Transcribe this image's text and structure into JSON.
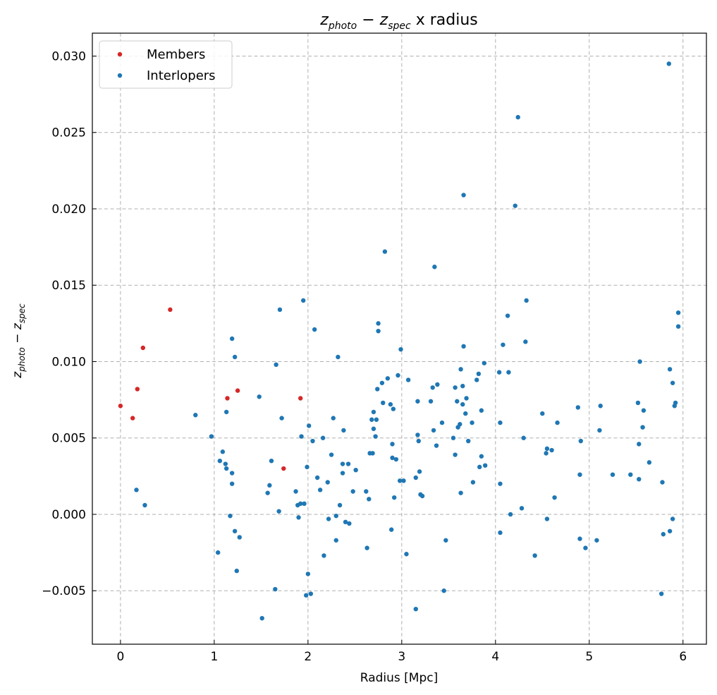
{
  "chart_data": {
    "type": "scatter",
    "title": {
      "base1": "z",
      "sub1": "photo",
      "mid": " − ",
      "base2": "z",
      "sub2": "spec",
      "tail": " x radius"
    },
    "xlabel": "Radius [Mpc]",
    "ylabel": {
      "base1": "z",
      "sub1": "photo",
      "mid": " − ",
      "base2": "z",
      "sub2": "spec"
    },
    "xlim": [
      -0.3,
      6.25
    ],
    "ylim": [
      -0.0085,
      0.0315
    ],
    "xticks": [
      0,
      1,
      2,
      3,
      4,
      5,
      6
    ],
    "xtick_labels": [
      "0",
      "1",
      "2",
      "3",
      "4",
      "5",
      "6"
    ],
    "yticks": [
      -0.005,
      0.0,
      0.005,
      0.01,
      0.015,
      0.02,
      0.025,
      0.03
    ],
    "ytick_labels": [
      "−0.005",
      "0.000",
      "0.005",
      "0.010",
      "0.015",
      "0.020",
      "0.025",
      "0.030"
    ],
    "grid": true,
    "legend_position": "top-left",
    "series": [
      {
        "name": "Members",
        "color": "#d62728",
        "points": [
          [
            0.0,
            0.0071
          ],
          [
            0.13,
            0.0063
          ],
          [
            0.18,
            0.0082
          ],
          [
            0.24,
            0.0109
          ],
          [
            0.53,
            0.0134
          ],
          [
            1.14,
            0.0076
          ],
          [
            1.25,
            0.0081
          ],
          [
            1.74,
            0.003
          ],
          [
            1.92,
            0.0076
          ]
        ]
      },
      {
        "name": "Interlopers",
        "color": "#1f77b4",
        "points": [
          [
            0.17,
            0.0016
          ],
          [
            0.26,
            0.0006
          ],
          [
            0.8,
            0.0065
          ],
          [
            0.97,
            0.0051
          ],
          [
            1.04,
            -0.0025
          ],
          [
            1.06,
            0.0035
          ],
          [
            1.09,
            0.0041
          ],
          [
            1.12,
            0.0033
          ],
          [
            1.13,
            0.003
          ],
          [
            1.13,
            0.0067
          ],
          [
            1.17,
            -0.0001
          ],
          [
            1.19,
            0.0027
          ],
          [
            1.19,
            0.002
          ],
          [
            1.19,
            0.0115
          ],
          [
            1.22,
            0.0103
          ],
          [
            1.22,
            -0.0011
          ],
          [
            1.24,
            -0.0037
          ],
          [
            1.27,
            -0.0015
          ],
          [
            1.48,
            0.0077
          ],
          [
            1.51,
            -0.0068
          ],
          [
            1.57,
            0.0014
          ],
          [
            1.59,
            0.0019
          ],
          [
            1.61,
            0.0035
          ],
          [
            1.65,
            -0.0049
          ],
          [
            1.66,
            0.0098
          ],
          [
            1.69,
            0.0002
          ],
          [
            1.7,
            0.0134
          ],
          [
            1.72,
            0.0063
          ],
          [
            1.87,
            0.0015
          ],
          [
            1.89,
            0.0006
          ],
          [
            1.9,
            -0.0002
          ],
          [
            1.92,
            0.0007
          ],
          [
            1.93,
            0.0051
          ],
          [
            1.95,
            0.014
          ],
          [
            1.96,
            0.0007
          ],
          [
            1.98,
            -0.0053
          ],
          [
            1.99,
            0.0031
          ],
          [
            2.0,
            -0.0039
          ],
          [
            2.01,
            0.0058
          ],
          [
            2.03,
            -0.0052
          ],
          [
            2.05,
            0.0048
          ],
          [
            2.07,
            0.0121
          ],
          [
            2.1,
            0.0024
          ],
          [
            2.13,
            0.0016
          ],
          [
            2.16,
            0.005
          ],
          [
            2.17,
            -0.0027
          ],
          [
            2.21,
            0.0021
          ],
          [
            2.22,
            -0.0003
          ],
          [
            2.25,
            0.0039
          ],
          [
            2.27,
            0.0063
          ],
          [
            2.3,
            -0.0017
          ],
          [
            2.3,
            -0.0001
          ],
          [
            2.32,
            0.0103
          ],
          [
            2.34,
            0.0006
          ],
          [
            2.37,
            0.0033
          ],
          [
            2.37,
            0.0027
          ],
          [
            2.38,
            0.0055
          ],
          [
            2.4,
            -0.0005
          ],
          [
            2.43,
            0.0033
          ],
          [
            2.44,
            -0.0006
          ],
          [
            2.48,
            0.0015
          ],
          [
            2.51,
            0.0029
          ],
          [
            2.62,
            0.0015
          ],
          [
            2.63,
            -0.0022
          ],
          [
            2.65,
            0.001
          ],
          [
            2.66,
            0.004
          ],
          [
            2.68,
            0.0062
          ],
          [
            2.69,
            0.004
          ],
          [
            2.7,
            0.0067
          ],
          [
            2.7,
            0.0056
          ],
          [
            2.72,
            0.0051
          ],
          [
            2.73,
            0.0062
          ],
          [
            2.74,
            0.0082
          ],
          [
            2.75,
            0.0125
          ],
          [
            2.75,
            0.012
          ],
          [
            2.79,
            0.0086
          ],
          [
            2.8,
            0.0073
          ],
          [
            2.82,
            0.0172
          ],
          [
            2.85,
            0.0089
          ],
          [
            2.88,
            0.0072
          ],
          [
            2.89,
            -0.001
          ],
          [
            2.9,
            0.0037
          ],
          [
            2.9,
            0.0046
          ],
          [
            2.91,
            0.0069
          ],
          [
            2.92,
            0.0011
          ],
          [
            2.94,
            0.0036
          ],
          [
            2.96,
            0.0091
          ],
          [
            2.98,
            0.0022
          ],
          [
            2.99,
            0.0108
          ],
          [
            3.02,
            0.0022
          ],
          [
            3.05,
            -0.0026
          ],
          [
            3.07,
            0.0088
          ],
          [
            3.15,
            0.0024
          ],
          [
            3.15,
            -0.0062
          ],
          [
            3.17,
            0.0074
          ],
          [
            3.17,
            0.0052
          ],
          [
            3.18,
            0.0048
          ],
          [
            3.19,
            0.0028
          ],
          [
            3.2,
            0.0013
          ],
          [
            3.22,
            0.0012
          ],
          [
            3.31,
            0.0074
          ],
          [
            3.33,
            0.0083
          ],
          [
            3.34,
            0.0055
          ],
          [
            3.35,
            0.0162
          ],
          [
            3.37,
            0.0045
          ],
          [
            3.38,
            0.0085
          ],
          [
            3.43,
            0.006
          ],
          [
            3.45,
            -0.005
          ],
          [
            3.47,
            -0.0017
          ],
          [
            3.55,
            0.005
          ],
          [
            3.57,
            0.0039
          ],
          [
            3.57,
            0.0083
          ],
          [
            3.59,
            0.0074
          ],
          [
            3.6,
            0.0057
          ],
          [
            3.62,
            0.0059
          ],
          [
            3.63,
            0.0095
          ],
          [
            3.63,
            0.0014
          ],
          [
            3.65,
            0.0084
          ],
          [
            3.65,
            0.0072
          ],
          [
            3.66,
            0.011
          ],
          [
            3.66,
            0.0209
          ],
          [
            3.68,
            0.0066
          ],
          [
            3.69,
            0.0076
          ],
          [
            3.71,
            0.0048
          ],
          [
            3.75,
            0.006
          ],
          [
            3.76,
            0.0021
          ],
          [
            3.8,
            0.0088
          ],
          [
            3.82,
            0.0092
          ],
          [
            3.83,
            0.0031
          ],
          [
            3.85,
            0.0068
          ],
          [
            3.85,
            0.0038
          ],
          [
            3.88,
            0.0099
          ],
          [
            3.89,
            0.0032
          ],
          [
            4.04,
            0.0093
          ],
          [
            4.05,
            0.002
          ],
          [
            4.05,
            0.006
          ],
          [
            4.05,
            -0.0012
          ],
          [
            4.08,
            0.0111
          ],
          [
            4.13,
            0.013
          ],
          [
            4.14,
            0.0093
          ],
          [
            4.16,
            0.0
          ],
          [
            4.21,
            0.0202
          ],
          [
            4.24,
            0.026
          ],
          [
            4.28,
            0.0004
          ],
          [
            4.3,
            0.005
          ],
          [
            4.32,
            0.0113
          ],
          [
            4.33,
            0.014
          ],
          [
            4.42,
            -0.0027
          ],
          [
            4.5,
            0.0066
          ],
          [
            4.54,
            0.004
          ],
          [
            4.55,
            0.0043
          ],
          [
            4.55,
            -0.0003
          ],
          [
            4.6,
            0.0042
          ],
          [
            4.63,
            0.0011
          ],
          [
            4.66,
            0.006
          ],
          [
            4.88,
            0.007
          ],
          [
            4.9,
            0.0026
          ],
          [
            4.9,
            -0.0016
          ],
          [
            4.91,
            0.0048
          ],
          [
            4.96,
            -0.0022
          ],
          [
            5.08,
            -0.0017
          ],
          [
            5.11,
            0.0055
          ],
          [
            5.12,
            0.0071
          ],
          [
            5.25,
            0.0026
          ],
          [
            5.44,
            0.0026
          ],
          [
            5.52,
            0.0073
          ],
          [
            5.53,
            0.0046
          ],
          [
            5.53,
            0.0023
          ],
          [
            5.54,
            0.01
          ],
          [
            5.57,
            0.0057
          ],
          [
            5.58,
            0.0068
          ],
          [
            5.64,
            0.0034
          ],
          [
            5.77,
            -0.0052
          ],
          [
            5.78,
            0.0021
          ],
          [
            5.79,
            -0.0013
          ],
          [
            5.85,
            0.0295
          ],
          [
            5.86,
            0.0095
          ],
          [
            5.86,
            -0.0011
          ],
          [
            5.89,
            0.0086
          ],
          [
            5.89,
            -0.0003
          ],
          [
            5.91,
            0.0071
          ],
          [
            5.92,
            0.0073
          ],
          [
            5.95,
            0.0132
          ],
          [
            5.95,
            0.0123
          ]
        ]
      }
    ]
  }
}
